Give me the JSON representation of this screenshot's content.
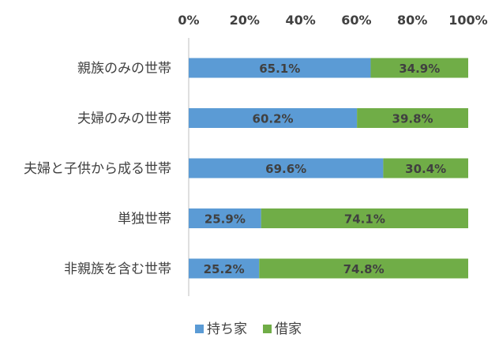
{
  "chart_data": {
    "type": "bar",
    "orientation": "horizontal",
    "stacked": true,
    "percent_stacked": true,
    "categories": [
      "親族のみの世帯",
      "夫婦のみの世帯",
      "夫婦と子供から成る世帯",
      "単独世帯",
      "非親族を含む世帯"
    ],
    "series": [
      {
        "name": "持ち家",
        "color": "#5b9bd5",
        "values": [
          65.1,
          60.2,
          69.6,
          25.9,
          25.2
        ],
        "labels": [
          "65.1%",
          "60.2%",
          "69.6%",
          "25.9%",
          "25.2%"
        ]
      },
      {
        "name": "借家",
        "color": "#70ad47",
        "values": [
          34.9,
          39.8,
          30.4,
          74.1,
          74.8
        ],
        "labels": [
          "34.9%",
          "39.8%",
          "30.4%",
          "74.1%",
          "74.8%"
        ]
      }
    ],
    "xlim": [
      0,
      100
    ],
    "x_ticks": [
      "0%",
      "20%",
      "40%",
      "60%",
      "80%",
      "100%"
    ],
    "x_axis_position": "top",
    "grid": false,
    "legend_position": "bottom"
  }
}
